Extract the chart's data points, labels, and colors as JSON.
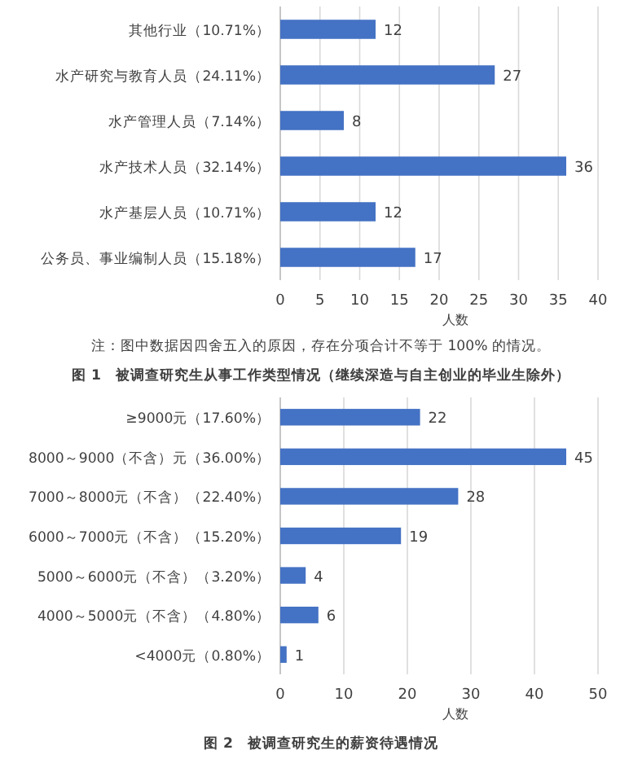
{
  "chart_data": [
    {
      "type": "bar",
      "orientation": "horizontal",
      "title": "图 1　被调查研究生从事工作类型情况（继续深造与自主创业的毕业生除外）",
      "xlabel": "人数",
      "annotations": [
        "注：图中数据因四舍五入的原因，存在分项合计不等于 100% 的情况。"
      ],
      "categories": [
        "其他行业（10.71%）",
        "水产研究与教育人员（24.11%）",
        "水产管理人员（7.14%）",
        "水产技术人员（32.14%）",
        "水产基层人员（10.71%）",
        "公务员、事业编制人员（15.18%）"
      ],
      "values": [
        12,
        27,
        8,
        36,
        12,
        17
      ],
      "color": "#4472c4",
      "xlim": [
        0,
        40
      ],
      "xticks": [
        0,
        5,
        10,
        15,
        20,
        25,
        30,
        35,
        40
      ],
      "grid": "x",
      "data_labels": true
    },
    {
      "type": "bar",
      "orientation": "horizontal",
      "title": "图 2　被调查研究生的薪资待遇情况",
      "xlabel": "人数",
      "categories": [
        "≥9000元（17.60%）",
        "8000～9000（不含）元（36.00%）",
        "7000～8000元（不含）（22.40%）",
        "6000～7000元（不含）（15.20%）",
        "5000～6000元（不含）（3.20%）",
        "4000～5000元（不含）（4.80%）",
        "<4000元（0.80%）"
      ],
      "values": [
        22,
        45,
        28,
        19,
        4,
        6,
        1
      ],
      "color": "#4472c4",
      "xlim": [
        0,
        50
      ],
      "xticks": [
        0,
        10,
        20,
        30,
        40,
        50
      ],
      "grid": "x",
      "data_labels": true
    }
  ]
}
